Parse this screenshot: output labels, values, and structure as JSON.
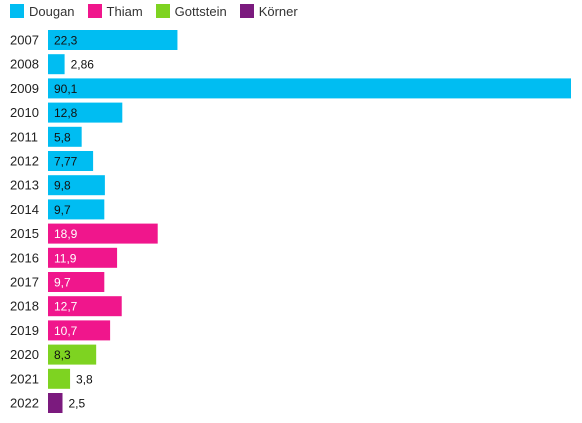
{
  "chart_data": {
    "type": "bar",
    "orientation": "horizontal",
    "categories": [
      "2007",
      "2008",
      "2009",
      "2010",
      "2011",
      "2012",
      "2013",
      "2014",
      "2015",
      "2016",
      "2017",
      "2018",
      "2019",
      "2020",
      "2021",
      "2022"
    ],
    "values": [
      22.3,
      2.86,
      90.1,
      12.8,
      5.8,
      7.77,
      9.8,
      9.7,
      18.9,
      11.9,
      9.7,
      12.7,
      10.7,
      8.3,
      3.8,
      2.5
    ],
    "value_labels": [
      "22,3",
      "2,86",
      "90,1",
      "12,8",
      "5,8",
      "7,77",
      "9,8",
      "9,7",
      "18,9",
      "11,9",
      "9,7",
      "12,7",
      "10,7",
      "8,3",
      "3,8",
      "2,5"
    ],
    "series_of_bar": [
      "Dougan",
      "Dougan",
      "Dougan",
      "Dougan",
      "Dougan",
      "Dougan",
      "Dougan",
      "Dougan",
      "Thiam",
      "Thiam",
      "Thiam",
      "Thiam",
      "Thiam",
      "Gottstein",
      "Gottstein",
      "Körner"
    ],
    "legend": [
      {
        "name": "Dougan",
        "color": "#00bdf2"
      },
      {
        "name": "Thiam",
        "color": "#f0168c"
      },
      {
        "name": "Gottstein",
        "color": "#7ed321"
      },
      {
        "name": "Körner",
        "color": "#7b1a7e"
      }
    ],
    "legend_position": "top-left",
    "xlim": [
      0,
      90.1
    ],
    "grid": false,
    "title": "",
    "xlabel": "",
    "ylabel": ""
  }
}
